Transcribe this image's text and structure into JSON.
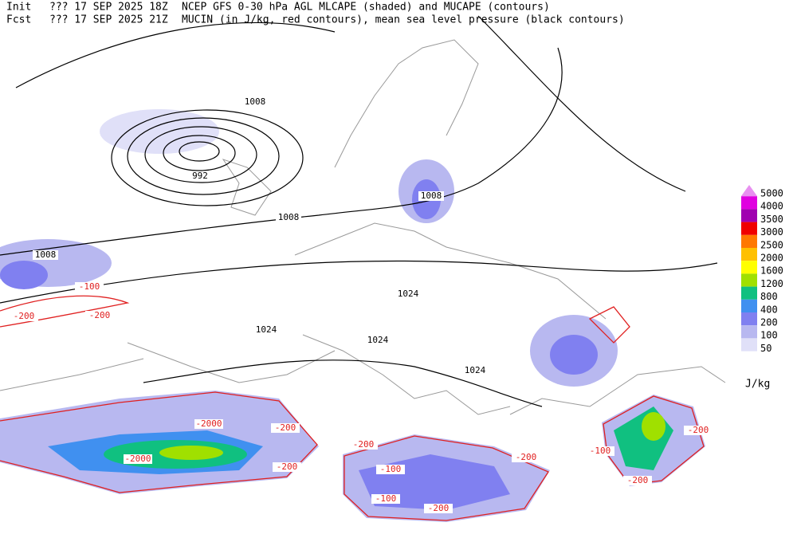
{
  "header": {
    "init_label": "Init",
    "init_time": "??? 17 SEP 2025 18Z",
    "line1": "NCEP GFS 0-30 hPa AGL MLCAPE (shaded) and MUCAPE (contours)",
    "fcst_label": "Fcst",
    "fcst_time": "??? 17 SEP 2025 21Z",
    "line2": "MUCIN (in J/kg, red contours), mean sea level pressure (black contours)"
  },
  "legend": {
    "unit": "J/kg",
    "levels": [
      {
        "label": 5000,
        "color": "#e890f0"
      },
      {
        "label": 4000,
        "color": "#e000e0"
      },
      {
        "label": 3500,
        "color": "#a000b0"
      },
      {
        "label": 3000,
        "color": "#f00000"
      },
      {
        "label": 2500,
        "color": "#ff7800"
      },
      {
        "label": 2000,
        "color": "#ffc000"
      },
      {
        "label": 1600,
        "color": "#ffff00"
      },
      {
        "label": 1200,
        "color": "#a0e000"
      },
      {
        "label": 800,
        "color": "#10c080"
      },
      {
        "label": 400,
        "color": "#4090f0"
      },
      {
        "label": 200,
        "color": "#8080f0"
      },
      {
        "label": 100,
        "color": "#b8b8f0"
      },
      {
        "label": 50,
        "color": "#e0e0f8"
      }
    ]
  },
  "pressure_labels": [
    "1008",
    "992",
    "1008",
    "1008",
    "1008",
    "1024",
    "1024",
    "1024",
    "1024"
  ],
  "cin_labels": [
    "-100",
    "-200",
    "-2000",
    "-200",
    "-2000",
    "-200",
    "-200",
    "-100",
    "-200",
    "-200",
    "-100",
    "-200",
    "-100",
    "-200",
    "-200"
  ]
}
